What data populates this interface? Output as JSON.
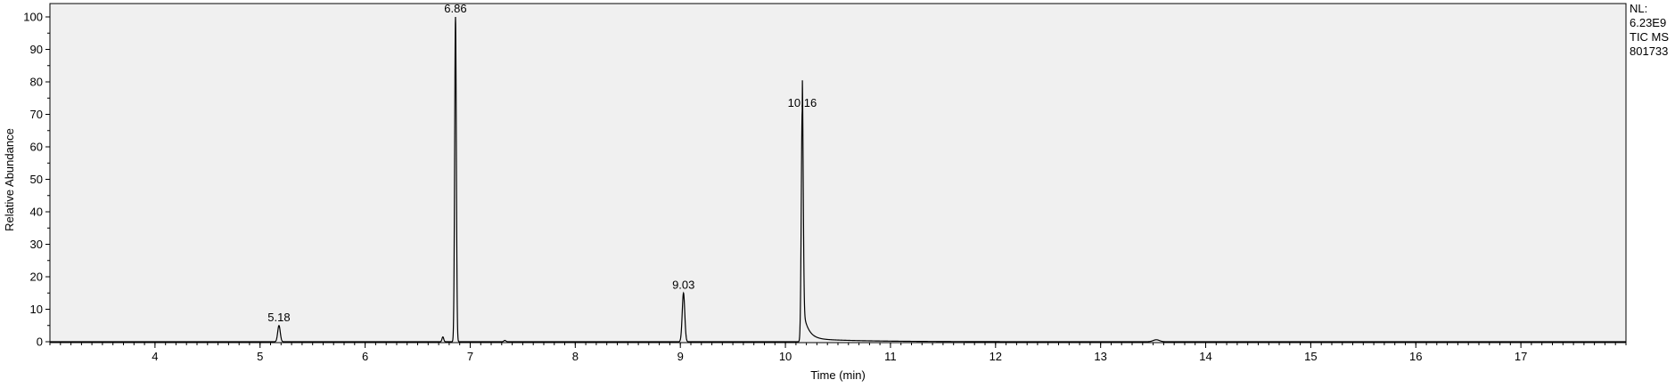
{
  "chart_data": {
    "type": "line",
    "title": "",
    "xlabel": "Time (min)",
    "ylabel": "Relative Abundance",
    "xlim": [
      3.0,
      18.0
    ],
    "ylim": [
      0,
      100
    ],
    "x_ticks": [
      4,
      5,
      6,
      7,
      8,
      9,
      10,
      11,
      12,
      13,
      14,
      15,
      16,
      17
    ],
    "y_ticks": [
      0,
      10,
      20,
      30,
      40,
      50,
      60,
      70,
      80,
      90,
      100
    ],
    "grid": false,
    "plot_background": "#f0f0f0",
    "line_color": "#000000",
    "peaks": [
      {
        "rt": 5.18,
        "height": 5,
        "width": 0.012,
        "label": "5.18"
      },
      {
        "rt": 6.86,
        "height": 100,
        "width": 0.008,
        "label": "6.86"
      },
      {
        "rt": 9.03,
        "height": 15,
        "width": 0.012,
        "label": "9.03"
      },
      {
        "rt": 10.16,
        "height": 71,
        "width": 0.009,
        "label": "10.16"
      }
    ],
    "minor_bumps": [
      {
        "rt": 6.74,
        "height": 1.5,
        "width": 0.008
      },
      {
        "rt": 7.33,
        "height": 0.4,
        "width": 0.01
      },
      {
        "rt": 13.53,
        "height": 0.6,
        "width": 0.03
      }
    ],
    "tails": [
      {
        "rt": 10.16,
        "amplitude": 10,
        "decay": 0.05,
        "floor_amp": 1.0,
        "floor_decay": 0.5
      }
    ]
  },
  "info": {
    "nl_label": "NL:",
    "nl_value": "6.23E9",
    "trace": "TIC  MS",
    "file": "801733"
  }
}
